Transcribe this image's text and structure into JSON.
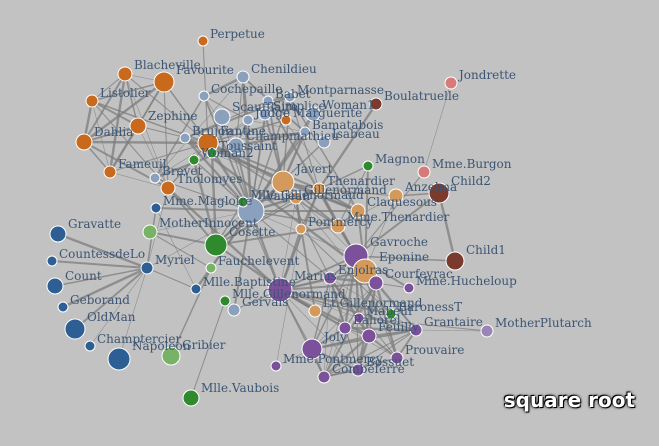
{
  "scale_label": "square root",
  "colors": {
    "background": "#c2c2c2",
    "orange": "#c8691b",
    "steel": "#8aa0bc",
    "blue": "#2d5f95",
    "green": "#2e8a2d",
    "lightgreen": "#78b266",
    "tan": "#d49a5c",
    "purple": "#7a519a",
    "lavender": "#9a85b5",
    "brown": "#7a3a2e",
    "salmon": "#d97a7a",
    "edge": "#7c7c7c",
    "label": "#3c5573"
  },
  "nodes": [
    {
      "id": "Perpetue",
      "label": "Perpetue",
      "color": "orange"
    },
    {
      "id": "Blacheville",
      "label": "Blacheville",
      "color": "orange"
    },
    {
      "id": "Favourite",
      "label": "Favourite",
      "color": "orange"
    },
    {
      "id": "Listolier",
      "label": "Listolier",
      "color": "orange"
    },
    {
      "id": "Zephine",
      "label": "Zephine",
      "color": "orange"
    },
    {
      "id": "Dahlia",
      "label": "Dahlia",
      "color": "orange"
    },
    {
      "id": "Fameuil",
      "label": "Fameuil",
      "color": "orange"
    },
    {
      "id": "Tholomyes",
      "label": "Tholomyes",
      "color": "orange"
    },
    {
      "id": "Fantine",
      "label": "Fantine",
      "color": "orange"
    },
    {
      "id": "Marguerite",
      "label": "Marguerite",
      "color": "orange"
    },
    {
      "id": "Chenildieu",
      "label": "Chenildieu",
      "color": "steel"
    },
    {
      "id": "Cochepaille",
      "label": "Cochepaille",
      "color": "steel"
    },
    {
      "id": "Brujon",
      "label": "Brujon",
      "color": "steel"
    },
    {
      "id": "Babet",
      "label": "Babet",
      "color": "steel"
    },
    {
      "id": "Montparnasse",
      "label": "Montparnasse",
      "color": "steel"
    },
    {
      "id": "Simplice",
      "label": "Simplice",
      "color": "steel"
    },
    {
      "id": "Woman1",
      "label": "Woman1",
      "color": "steel"
    },
    {
      "id": "Scaufflaire",
      "label": "Scaufflaire",
      "color": "steel"
    },
    {
      "id": "Judge",
      "label": "Judge",
      "color": "steel"
    },
    {
      "id": "Champmathieu",
      "label": "Champmathieu",
      "color": "steel"
    },
    {
      "id": "Isabeau",
      "label": "Isabeau",
      "color": "steel"
    },
    {
      "id": "Bamatabois",
      "label": "Bamatabois",
      "color": "steel"
    },
    {
      "id": "Brevet",
      "label": "Brevet",
      "color": "steel"
    },
    {
      "id": "Javert",
      "label": "Javert",
      "color": "tan"
    },
    {
      "id": "Thenardier",
      "label": "Thenardier",
      "color": "tan"
    },
    {
      "id": "Anzelma",
      "label": "Anzelma",
      "color": "tan"
    },
    {
      "id": "Claquesous",
      "label": "Claquesous",
      "color": "tan"
    },
    {
      "id": "Gillenormand",
      "label": "Gillenormand",
      "color": "tan"
    },
    {
      "id": "Valjean",
      "label": "Valjean",
      "color": "steel"
    },
    {
      "id": "Pontmercy",
      "label": "Pontmercy",
      "color": "tan"
    },
    {
      "id": "MmeThenardier",
      "label": "Mme.Thenardier",
      "color": "tan"
    },
    {
      "id": "Boulatruelle",
      "label": "Boulatruelle",
      "color": "brown"
    },
    {
      "id": "Jondrette",
      "label": "Jondrette",
      "color": "salmon"
    },
    {
      "id": "MmeBurgon",
      "label": "Mme.Burgon",
      "color": "salmon"
    },
    {
      "id": "Magnon",
      "label": "Magnon",
      "color": "green"
    },
    {
      "id": "Child1",
      "label": "Child1",
      "color": "brown"
    },
    {
      "id": "Child2",
      "label": "Child2",
      "color": "brown"
    },
    {
      "id": "Toussaint",
      "label": "Toussaint",
      "color": "green"
    },
    {
      "id": "Woman2",
      "label": "Woman2",
      "color": "green"
    },
    {
      "id": "MmeMagloire",
      "label": "Mme.Magloire",
      "color": "blue"
    },
    {
      "id": "MlleGillenormand",
      "label": "Mlle.Gillenormand",
      "color": "green"
    },
    {
      "id": "Cosette",
      "label": "Cosette",
      "color": "green"
    },
    {
      "id": "MotherInnocent",
      "label": "MotherInnocent",
      "color": "lightgreen"
    },
    {
      "id": "Gravatte",
      "label": "Gravatte",
      "color": "blue"
    },
    {
      "id": "CountessdeLo",
      "label": "CountessdeLo",
      "color": "blue"
    },
    {
      "id": "Myriel",
      "label": "Myriel",
      "color": "blue"
    },
    {
      "id": "Count",
      "label": "Count",
      "color": "blue"
    },
    {
      "id": "Geborand",
      "label": "Geborand",
      "color": "blue"
    },
    {
      "id": "OldMan",
      "label": "OldMan",
      "color": "blue"
    },
    {
      "id": "Champtercier",
      "label": "Champtercier",
      "color": "blue"
    },
    {
      "id": "Napoleon",
      "label": "Napoleon",
      "color": "blue"
    },
    {
      "id": "Gribier",
      "label": "Gribier",
      "color": "lightgreen"
    },
    {
      "id": "Fauchelevent",
      "label": "Fauchelevent",
      "color": "lightgreen"
    },
    {
      "id": "MlleBaptistine",
      "label": "Mlle.Baptistine",
      "color": "blue"
    },
    {
      "id": "MlleGillenormand2",
      "label": "Mlle.Gillenormand",
      "color": "green"
    },
    {
      "id": "Gervais",
      "label": "Gervais",
      "color": "steel"
    },
    {
      "id": "MlleVaubois",
      "label": "Mlle.Vaubois",
      "color": "green"
    },
    {
      "id": "Gavroche",
      "label": "Gavroche",
      "color": "purple"
    },
    {
      "id": "Eponine",
      "label": "Eponine",
      "color": "tan"
    },
    {
      "id": "Enjolras",
      "label": "Enjolras",
      "color": "purple"
    },
    {
      "id": "Courfeyrac",
      "label": "Courfeyrac",
      "color": "purple"
    },
    {
      "id": "Marius",
      "label": "Marius",
      "color": "purple"
    },
    {
      "id": "MlleHucheloup",
      "label": "Mme.Hucheloup",
      "color": "purple"
    },
    {
      "id": "BaronessT",
      "label": "BaronessT",
      "color": "green"
    },
    {
      "id": "Mabeuf",
      "label": "Mabeuf",
      "color": "purple"
    },
    {
      "id": "Grantaire",
      "label": "Grantaire",
      "color": "purple"
    },
    {
      "id": "MotherPlutarch",
      "label": "MotherPlutarch",
      "color": "lavender"
    },
    {
      "id": "Prouvaire",
      "label": "Prouvaire",
      "color": "purple"
    },
    {
      "id": "Joly",
      "label": "Joly",
      "color": "purple"
    },
    {
      "id": "Bossuet",
      "label": "Bossuet",
      "color": "purple"
    },
    {
      "id": "Feuilly",
      "label": "Feuilly",
      "color": "purple"
    },
    {
      "id": "Combeferre",
      "label": "Combeferre",
      "color": "purple"
    },
    {
      "id": "MmePontmercy",
      "label": "Mme.Pontmercy",
      "color": "purple"
    },
    {
      "id": "Bahorel",
      "label": "Bahorel",
      "color": "purple"
    },
    {
      "id": "LtGillenormand",
      "label": "Lt.Gillenormand",
      "color": "tan"
    }
  ]
}
